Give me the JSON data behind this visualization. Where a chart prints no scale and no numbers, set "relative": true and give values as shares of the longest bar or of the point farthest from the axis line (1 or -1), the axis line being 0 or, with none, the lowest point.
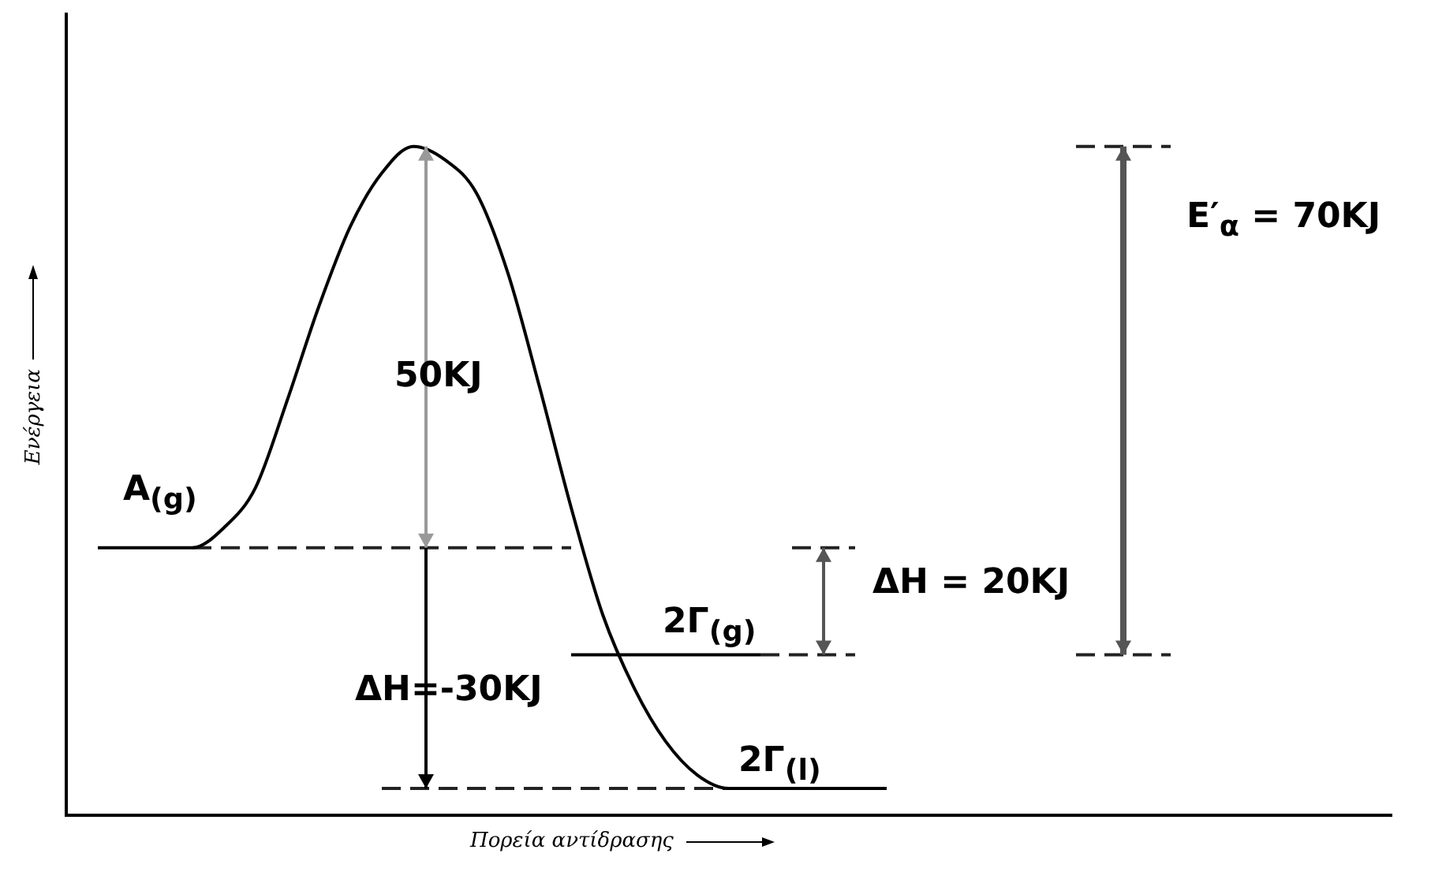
{
  "chart_data": {
    "type": "line",
    "relative": true,
    "xlabel": "Πορεία αντίδρασης",
    "ylabel": "Ενέργεια",
    "legend": false,
    "grid": false,
    "marker": "none",
    "categories": [
      null,
      null,
      null,
      null,
      null,
      null,
      null,
      null,
      null,
      null,
      null,
      null,
      null,
      null,
      null,
      null,
      null,
      null,
      null,
      null,
      null,
      null,
      null,
      null,
      null,
      null,
      null,
      null,
      null,
      null,
      null,
      null,
      null,
      null,
      null,
      null,
      null,
      null,
      null,
      null,
      null,
      null,
      null
    ],
    "series": [
      {
        "color": "#000000",
        "values": [
          null,
          0.4,
          0.4,
          0.4,
          0.4,
          0.43,
          0.49,
          0.62,
          0.76,
          0.88,
          0.96,
          1,
          0.98,
          0.93,
          0.81,
          0.64,
          0.46,
          0.3,
          0.19,
          0.11,
          0.06,
          0.04,
          0.04,
          0.04,
          0.04,
          0.04,
          0.04,
          null,
          null,
          null,
          null,
          null,
          null,
          null,
          null,
          null,
          null,
          null,
          null,
          null,
          null,
          null,
          null
        ]
      },
      {
        "color": "#000000",
        "values": [
          null,
          null,
          null,
          null,
          null,
          null,
          null,
          null,
          null,
          null,
          null,
          null,
          null,
          null,
          null,
          null,
          0.24,
          0.24,
          0.24,
          0.24,
          0.24,
          0.24,
          0.24,
          null,
          null,
          null,
          null,
          null,
          null,
          null,
          null,
          null,
          null,
          null,
          null,
          null,
          null,
          null,
          null,
          null,
          null,
          null,
          null
        ]
      },
      {
        "color": "#222222",
        "line_style": "dashed",
        "values": [
          null,
          null,
          null,
          null,
          0.4,
          0.4,
          0.4,
          0.4,
          0.4,
          0.4,
          0.4,
          0.4,
          0.4,
          0.4,
          0.4,
          0.4,
          0.4,
          null,
          null,
          null,
          null,
          null,
          null,
          0.4,
          0.4,
          0.4,
          null,
          null,
          null,
          null,
          null,
          null,
          null,
          null,
          null,
          null,
          null,
          null,
          null,
          null,
          null,
          null,
          null
        ]
      },
      {
        "color": "#222222",
        "line_style": "dashed",
        "values": [
          null,
          null,
          null,
          null,
          null,
          null,
          null,
          null,
          null,
          null,
          0.04,
          0.04,
          0.04,
          0.04,
          0.04,
          0.04,
          0.04,
          0.04,
          0.04,
          0.04,
          0.04,
          0.04,
          null,
          null,
          null,
          null,
          null,
          null,
          null,
          null,
          null,
          null,
          null,
          null,
          null,
          null,
          null,
          null,
          null,
          null,
          null,
          null,
          null
        ]
      },
      {
        "color": "#222222",
        "line_style": "dashed",
        "values": [
          null,
          null,
          null,
          null,
          null,
          null,
          null,
          null,
          null,
          null,
          null,
          null,
          null,
          null,
          null,
          null,
          null,
          null,
          null,
          null,
          null,
          null,
          0.24,
          0.24,
          0.24,
          0.24,
          null,
          null,
          null,
          null,
          null,
          null,
          0.24,
          0.24,
          0.24,
          0.24,
          null,
          null,
          null,
          null,
          null,
          null,
          null
        ]
      },
      {
        "color": "#222222",
        "line_style": "dashed",
        "values": [
          null,
          null,
          null,
          null,
          null,
          null,
          null,
          null,
          null,
          null,
          null,
          null,
          null,
          null,
          null,
          null,
          null,
          null,
          null,
          null,
          null,
          null,
          null,
          null,
          null,
          null,
          null,
          null,
          null,
          null,
          null,
          null,
          1,
          1,
          1,
          1,
          null,
          null,
          null,
          null,
          null,
          null,
          null
        ]
      }
    ],
    "annotations": [
      "A$_{(g)}$",
      "50KJ",
      "ΔH=-30KJ",
      "2Γ$_{(g)}$",
      "2Γ$_{(l)}$",
      "ΔH = 20KJ",
      "E′$_{α}$ = 70KJ"
    ]
  }
}
